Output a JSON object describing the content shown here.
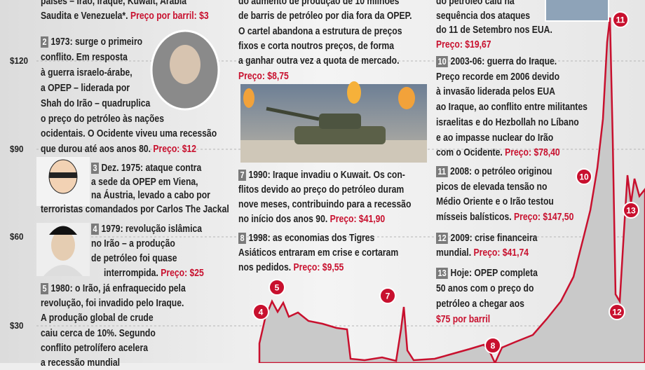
{
  "axis_labels": [
    "$120",
    "$90",
    "$60",
    "$30"
  ],
  "blocks": [
    {
      "lines": [
        "países – Irão, Iraque, Kuwait, Arábia",
        "Saudita e Venezuela*."
      ],
      "price": "Preço por barril: $3"
    },
    {
      "number": "2",
      "lines": [
        "1973: surge o primeiro",
        "conflito. Em resposta",
        "à guerra israelo-árabe,",
        "a OPEP – liderada por",
        "Shah do Irão – quadruplica",
        "o preço do petróleo às nações",
        "ocidentais. O Ocidente viveu uma recessão",
        "que durou até aos anos 80."
      ],
      "price": "Preço: $12"
    },
    {
      "number": "3",
      "lines": [
        "Dez. 1975: ataque contra",
        "a sede da OPEP em Viena,",
        "na Áustria, levado a cabo por",
        "terroristas comandados por Carlos The Jackal"
      ]
    },
    {
      "number": "4",
      "lines": [
        "1979: revolução islâmica",
        "no Irão – a produção",
        "de petróleo foi quase",
        "interrompida."
      ],
      "price": "Preço: $25"
    },
    {
      "number": "5",
      "lines": [
        "1980: o Irão, já enfraquecido pela",
        "revolução, foi invadido pelo Iraque.",
        "A produção global de crude",
        "caiu cerca de 10%. Segundo",
        "conflito petrolífero acelera",
        "a recessão mundial"
      ]
    },
    {
      "lines": [
        "do aumento de produção de 10 milhões",
        "de barris de petróleo por dia fora da OPEP.",
        "O cartel abandona a estrutura de preços",
        "fixos e corta noutros preços, de forma",
        "a ganhar outra vez a quota de mercado."
      ],
      "price": "Preço: $8,75"
    },
    {
      "number": "7",
      "lines": [
        "1990: Iraque invadiu o Kuwait. Os con-",
        "flitos devido ao preço do petróleo duram",
        "nove meses, contribuindo para a recessão",
        "no início dos anos 90."
      ],
      "price": "Preço: $41,90"
    },
    {
      "number": "8",
      "lines": [
        "1998: as economias dos Tigres",
        "Asiáticos entraram em crise e cortaram",
        "nos pedidos."
      ],
      "price": "Preço: $9,55"
    },
    {
      "lines": [
        "do petróleo caiu na",
        "sequência dos ataques",
        "do 11 de Setembro nos EUA."
      ],
      "price": "Preço: $19,67"
    },
    {
      "number": "10",
      "lines": [
        "2003-06: guerra do Iraque.",
        "Preço recorde em 2006 devido",
        "à invasão liderada pelos EUA",
        "ao Iraque, ao conflito entre militantes",
        "israelitas e do Hezbollah no Líbano",
        "e ao impasse nuclear do Irão",
        "com o Ocidente."
      ],
      "price": "Preço: $78,40"
    },
    {
      "number": "11",
      "lines": [
        "2008: o petróleo originou",
        "picos de elevada tensão no",
        "Médio Oriente e o Irão testou",
        "mísseis balísticos."
      ],
      "price": "Preço: $147,50"
    },
    {
      "number": "12",
      "lines": [
        "2009: crise financeira",
        "mundial."
      ],
      "price": "Preço: $41,74"
    },
    {
      "number": "13",
      "lines": [
        "Hoje: OPEP completa",
        "50 anos com o preço do",
        "petróleo a chegar aos"
      ],
      "price": "$75 por barril"
    }
  ],
  "markers": [
    "4",
    "5",
    "7",
    "8",
    "10",
    "11",
    "12",
    "13"
  ]
}
